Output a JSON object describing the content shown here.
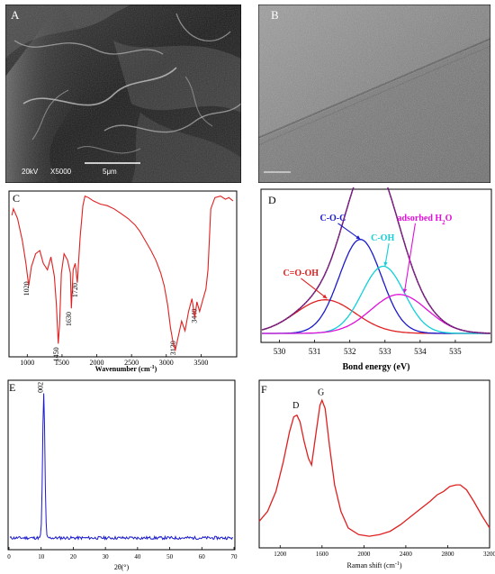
{
  "panels": {
    "A": {
      "letter": "A",
      "footer": {
        "voltage": "20kV",
        "magnification": "X5000",
        "scale": "5μm"
      }
    },
    "B": {
      "letter": "B"
    },
    "C": {
      "letter": "C",
      "chart_data": {
        "type": "line",
        "xlabel_main": "Wavenumber (cm",
        "xlabel_sup": "-1",
        "xlabel_end": ")",
        "xlim": [
          750,
          4000
        ],
        "ylim": [
          0,
          1
        ],
        "xticks": [
          "1000",
          "1500",
          "2000",
          "2500",
          "3000",
          "3500"
        ],
        "tick_values": [
          1000,
          1500,
          2000,
          2500,
          3000,
          3500
        ],
        "annotations": [
          {
            "label": "1020",
            "x": 1020,
            "y": 0.47
          },
          {
            "label": "1450",
            "x": 1450,
            "y": 0.06
          },
          {
            "label": "1630",
            "x": 1630,
            "y": 0.28
          },
          {
            "label": "1720",
            "x": 1720,
            "y": 0.46
          },
          {
            "label": "3130",
            "x": 3130,
            "y": 0.1
          },
          {
            "label": "3440",
            "x": 3440,
            "y": 0.3
          }
        ],
        "series": [
          {
            "color": "#e02020",
            "x": [
              780,
              800,
              860,
              930,
              980,
              1020,
              1060,
              1120,
              1180,
              1230,
              1290,
              1340,
              1390,
              1420,
              1445,
              1465,
              1490,
              1530,
              1580,
              1620,
              1635,
              1660,
              1690,
              1720,
              1760,
              1800,
              1830,
              1880,
              1950,
              2050,
              2150,
              2250,
              2350,
              2450,
              2550,
              2620,
              2700,
              2780,
              2850,
              2920,
              2970,
              3020,
              3060,
              3100,
              3130,
              3170,
              3220,
              3270,
              3320,
              3370,
              3410,
              3440,
              3480,
              3530,
              3570,
              3600,
              3640,
              3700,
              3780,
              3850,
              3900,
              3960
            ],
            "y": [
              0.86,
              0.9,
              0.84,
              0.7,
              0.56,
              0.42,
              0.54,
              0.62,
              0.64,
              0.56,
              0.52,
              0.6,
              0.48,
              0.3,
              0.06,
              0.18,
              0.5,
              0.62,
              0.58,
              0.5,
              0.28,
              0.52,
              0.56,
              0.44,
              0.72,
              0.92,
              0.98,
              0.97,
              0.95,
              0.93,
              0.92,
              0.9,
              0.87,
              0.84,
              0.8,
              0.76,
              0.7,
              0.64,
              0.58,
              0.5,
              0.42,
              0.3,
              0.16,
              0.06,
              0.02,
              0.1,
              0.2,
              0.14,
              0.26,
              0.34,
              0.22,
              0.32,
              0.26,
              0.34,
              0.4,
              0.52,
              0.9,
              0.97,
              0.98,
              0.96,
              0.97,
              0.95
            ]
          }
        ]
      }
    },
    "D": {
      "letter": "D",
      "chart_data": {
        "type": "line",
        "xlabel": "Bond energy (eV)",
        "xlim": [
          529.5,
          536
        ],
        "ylim": [
          0,
          1.06
        ],
        "xticks": [
          "530",
          "531",
          "532",
          "533",
          "534",
          "535"
        ],
        "tick_values": [
          530,
          531,
          532,
          533,
          534,
          535
        ],
        "series": [
          {
            "name": "C=O-OH",
            "color": "#e02020",
            "center": 531.3,
            "amp": 0.25,
            "sigma": 0.85
          },
          {
            "name": "C-O-C",
            "color": "#1a1acc",
            "center": 532.3,
            "amp": 0.7,
            "sigma": 0.6
          },
          {
            "name": "C-OH",
            "color": "#10d0d8",
            "center": 532.95,
            "amp": 0.5,
            "sigma": 0.6
          },
          {
            "name_main": "adsorbed H",
            "name_sub": "2",
            "name_end": "O",
            "color": "#e010d8",
            "center": 533.4,
            "amp": 0.29,
            "sigma": 0.8
          },
          {
            "color": "#6a1070",
            "envelope": true
          }
        ],
        "labels": [
          {
            "series": 0,
            "tx": 530.1,
            "ty": 0.43,
            "ax": 531.35,
            "ay": 0.26
          },
          {
            "series": 1,
            "tx": 531.15,
            "ty": 0.84,
            "ax": 532.3,
            "ay": 0.7
          },
          {
            "series": 2,
            "tx": 532.6,
            "ty": 0.69,
            "ax": 533.0,
            "ay": 0.5
          },
          {
            "series": 3,
            "tx": 533.35,
            "ty": 0.84,
            "ax": 533.55,
            "ay": 0.3
          }
        ]
      }
    },
    "E": {
      "letter": "E",
      "chart_data": {
        "type": "line",
        "xlabel": "2θ(°)",
        "xlim": [
          0,
          70
        ],
        "ylim": [
          0,
          1
        ],
        "xticks": [
          "0",
          "10",
          "20",
          "30",
          "40",
          "50",
          "60",
          "70"
        ],
        "tick_values": [
          0,
          10,
          20,
          30,
          40,
          50,
          60,
          70
        ],
        "peak_label": "002",
        "series": [
          {
            "color": "#1a1acc",
            "peak_x": 10.8,
            "peak_y": 0.93,
            "base_y": 0.06
          }
        ]
      }
    },
    "F": {
      "letter": "F",
      "chart_data": {
        "type": "line",
        "xlabel_main": "Raman shift (cm",
        "xlabel_sup": "-1",
        "xlabel_end": ")",
        "xlim": [
          1000,
          3200
        ],
        "ylim": [
          0,
          1
        ],
        "xticks": [
          "1200",
          "1600",
          "2000",
          "2400",
          "2800",
          "3200"
        ],
        "tick_values": [
          1200,
          1600,
          2000,
          2400,
          2800,
          3200
        ],
        "peak_labels": [
          {
            "label": "D",
            "x": 1350,
            "y": 0.82
          },
          {
            "label": "G",
            "x": 1590,
            "y": 0.9
          }
        ],
        "series": [
          {
            "color": "#e02020",
            "x": [
              1000,
              1080,
              1160,
              1230,
              1290,
              1330,
              1360,
              1390,
              1430,
              1470,
              1500,
              1540,
              1580,
              1600,
              1630,
              1670,
              1720,
              1780,
              1850,
              1950,
              2050,
              2150,
              2250,
              2350,
              2450,
              2550,
              2630,
              2700,
              2760,
              2820,
              2880,
              2920,
              2980,
              3050,
              3130,
              3200
            ],
            "y": [
              0.16,
              0.22,
              0.34,
              0.52,
              0.7,
              0.79,
              0.8,
              0.76,
              0.64,
              0.54,
              0.5,
              0.68,
              0.86,
              0.89,
              0.84,
              0.62,
              0.38,
              0.22,
              0.12,
              0.08,
              0.07,
              0.08,
              0.1,
              0.14,
              0.19,
              0.24,
              0.28,
              0.32,
              0.34,
              0.37,
              0.38,
              0.38,
              0.35,
              0.28,
              0.19,
              0.12
            ]
          }
        ]
      }
    }
  }
}
